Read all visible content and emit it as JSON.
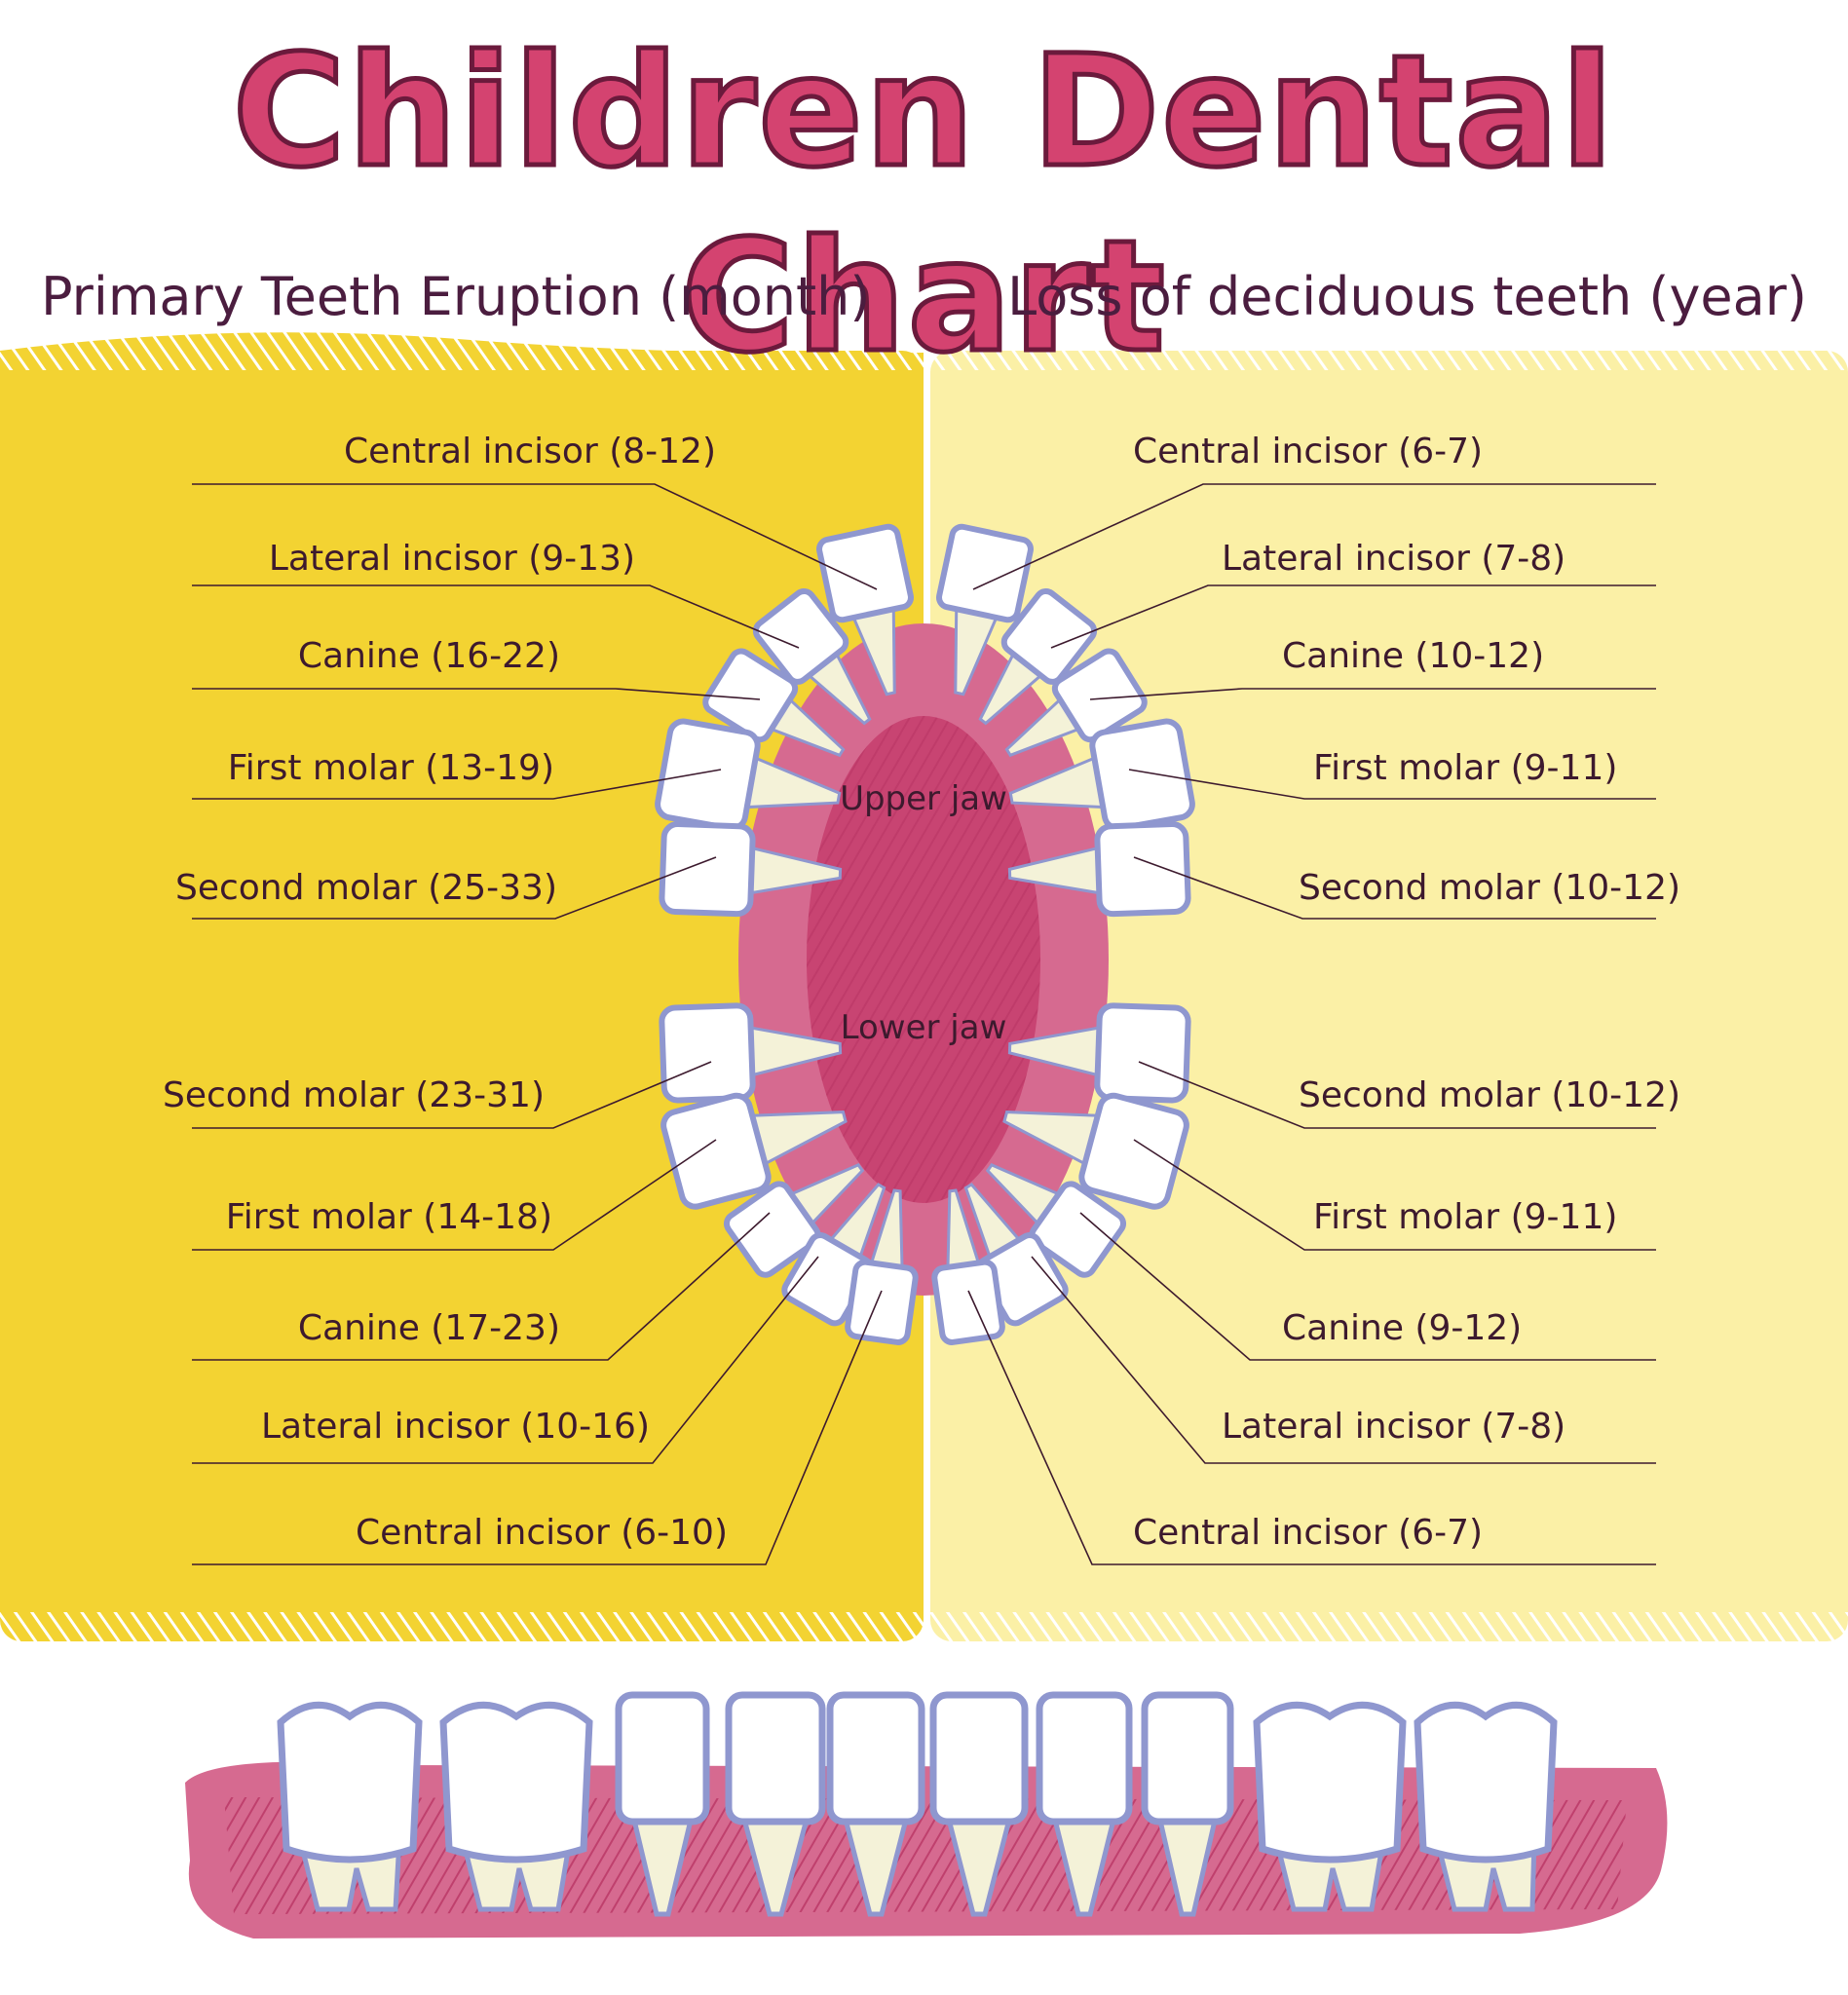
{
  "title": "Children Dental Chart",
  "subtitles": {
    "left": "Primary Teeth Eruption (month)",
    "right": "Loss of deciduous teeth (year)"
  },
  "jaws": {
    "upper": "Upper jaw",
    "lower": "Lower jaw"
  },
  "eruption_upper": [
    "Central incisor (8-12)",
    "Lateral incisor (9-13)",
    "Canine (16-22)",
    "First molar (13-19)",
    "Second molar (25-33)"
  ],
  "eruption_lower": [
    "Second molar (23-31)",
    "First molar (14-18)",
    "Canine (17-23)",
    "Lateral incisor (10-16)",
    "Central incisor (6-10)"
  ],
  "loss_upper": [
    "Central incisor (6-7)",
    "Lateral incisor (7-8)",
    "Canine (10-12)",
    "First molar (9-11)",
    "Second molar (10-12)"
  ],
  "loss_lower": [
    "Second molar (10-12)",
    "First molar (9-11)",
    "Canine (9-12)",
    "Lateral incisor (7-8)",
    "Central incisor (6-7)"
  ],
  "colors": {
    "title": "#d44370",
    "left_panel": "#f3d332",
    "right_panel": "#fbf0a6",
    "gum": "#d66a90",
    "gum_dark": "#c84472",
    "tooth_outline": "#8f97cf",
    "text": "#3d1a2e"
  }
}
